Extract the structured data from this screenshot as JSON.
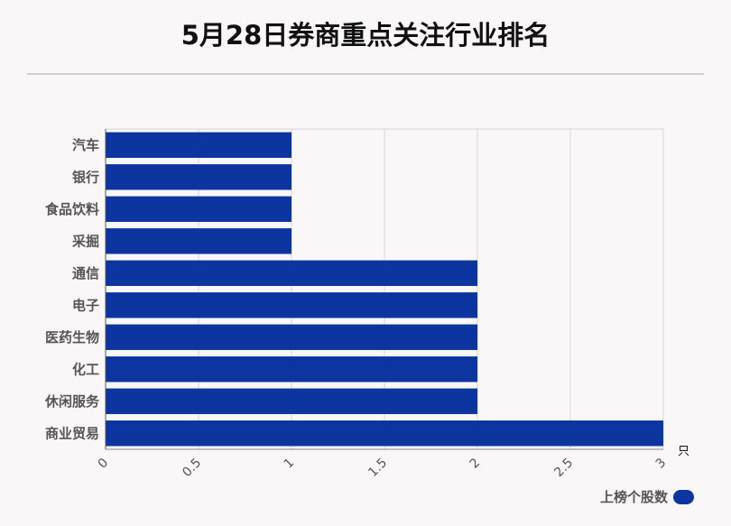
{
  "chart_data": {
    "type": "bar",
    "orientation": "horizontal",
    "title": "5月28日券商重点关注行业排名",
    "categories": [
      "汽车",
      "银行",
      "食品饮料",
      "采掘",
      "通信",
      "电子",
      "医药生物",
      "化工",
      "休闲服务",
      "商业贸易"
    ],
    "series": [
      {
        "name": "上榜个股数",
        "values": [
          1,
          1,
          1,
          1,
          2,
          2,
          2,
          2,
          2,
          3
        ],
        "color": "#0c35a0"
      }
    ],
    "xlim": [
      0,
      3
    ],
    "xticks": [
      "0",
      "0.5",
      "1",
      "1.5",
      "2",
      "2.5",
      "3"
    ],
    "xunit": "只",
    "grid": true,
    "legend_position": "bottom-right"
  }
}
